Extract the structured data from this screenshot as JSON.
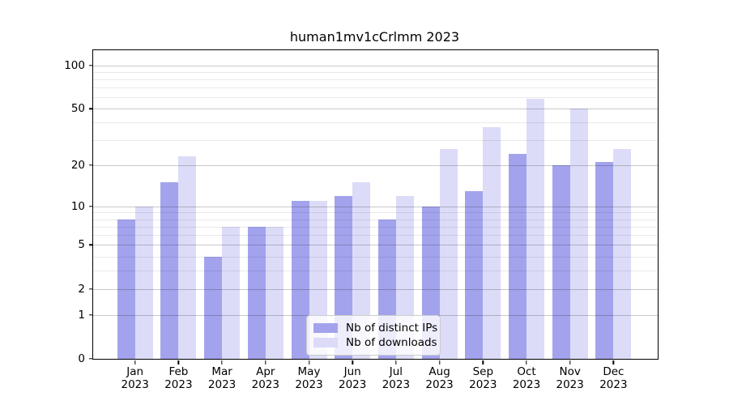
{
  "figure": {
    "title": "human1mv1cCrlmm 2023"
  },
  "chart_data": {
    "type": "bar",
    "title": "human1mv1cCrlmm 2023",
    "categories": [
      "Jan 2023",
      "Feb 2023",
      "Mar 2023",
      "Apr 2023",
      "May 2023",
      "Jun 2023",
      "Jul 2023",
      "Aug 2023",
      "Sep 2023",
      "Oct 2023",
      "Nov 2023",
      "Dec 2023"
    ],
    "series": [
      {
        "name": "Nb of distinct IPs",
        "color": "#a3a3ed",
        "values": [
          8,
          15,
          4,
          7,
          11,
          12,
          8,
          10,
          13,
          24,
          20,
          21
        ]
      },
      {
        "name": "Nb of downloads",
        "color": "#dcdcf8",
        "values": [
          10,
          23,
          7,
          7,
          11,
          15,
          12,
          26,
          37,
          59,
          50,
          26
        ]
      }
    ],
    "xlabel": "",
    "ylabel": "",
    "yscale": "log1p",
    "ylim": [
      0,
      127
    ],
    "major_ticks": [
      0,
      1,
      2,
      5,
      10,
      20,
      50,
      100
    ],
    "minor_ticks": [
      3,
      4,
      6,
      7,
      8,
      9,
      30,
      40,
      60,
      70,
      80,
      90
    ],
    "grid": true,
    "grid_on_top_of_bars": true,
    "legend_position": "lower center",
    "colors": {
      "bar_distinct_ips": "#a3a3ed",
      "bar_downloads": "#dcdcf8",
      "major_grid": "#c9c9c9",
      "minor_grid": "#e8e8e8",
      "axis": "#000000"
    }
  }
}
